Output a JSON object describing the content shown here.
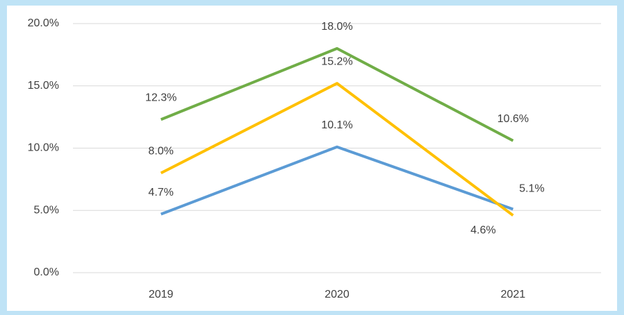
{
  "chart_data": {
    "type": "line",
    "categories": [
      "2019",
      "2020",
      "2021"
    ],
    "series": [
      {
        "color": "#5b9bd5",
        "values": [
          4.7,
          10.1,
          5.1
        ],
        "value_labels": [
          "4.7%",
          "10.1%",
          "5.1%"
        ]
      },
      {
        "color": "#ffc000",
        "values": [
          8.0,
          15.2,
          4.6
        ],
        "value_labels": [
          "8.0%",
          "15.2%",
          "4.6%"
        ]
      },
      {
        "color": "#70ad47",
        "values": [
          12.3,
          18.0,
          10.6
        ],
        "value_labels": [
          "12.3%",
          "18.0%",
          "10.6%"
        ]
      }
    ],
    "ylim": [
      0,
      20
    ],
    "yticks": [
      {
        "value": 0,
        "label": "0.0%"
      },
      {
        "value": 5,
        "label": "5.0%"
      },
      {
        "value": 10,
        "label": "10.0%"
      },
      {
        "value": 15,
        "label": "15.0%"
      },
      {
        "value": 20,
        "label": "20.0%"
      }
    ],
    "grid": true
  }
}
